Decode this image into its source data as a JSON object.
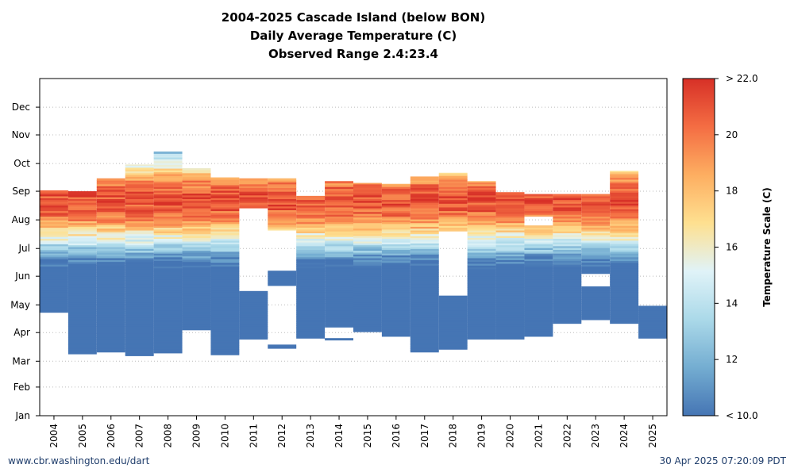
{
  "chart_data": {
    "type": "heatmap",
    "title": "2004-2025 Cascade Island (below BON)",
    "subtitle_lines": [
      "Daily Average Temperature (C)",
      "Observed Range 2.4:23.4"
    ],
    "x_categories": [
      "2004",
      "2005",
      "2006",
      "2007",
      "2008",
      "2009",
      "2010",
      "2011",
      "2012",
      "2013",
      "2014",
      "2015",
      "2016",
      "2017",
      "2018",
      "2019",
      "2020",
      "2021",
      "2022",
      "2023",
      "2024",
      "2025"
    ],
    "y_ticks": [
      "Jan",
      "Feb",
      "Mar",
      "Apr",
      "May",
      "Jun",
      "Jul",
      "Aug",
      "Sep",
      "Oct",
      "Nov",
      "Dec"
    ],
    "colorbar": {
      "label": "Temperature Scale (C)",
      "tick_labels": [
        "< 10.0",
        "12",
        "14",
        "16",
        "18",
        "20",
        "> 22.0"
      ],
      "tick_values": [
        10,
        12,
        14,
        16,
        18,
        20,
        22
      ],
      "range": [
        10,
        22
      ],
      "colors": [
        "#4575b4",
        "#74add1",
        "#abd9e9",
        "#e0f3f8",
        "#fee090",
        "#fdae61",
        "#f46d43",
        "#d73027"
      ]
    },
    "grid": "horizontal dotted",
    "coverage_note_days": "day-of-year ranges",
    "years": [
      {
        "year": "2004",
        "start": 112,
        "end": 244,
        "gaps": []
      },
      {
        "year": "2005",
        "start": 67,
        "end": 243,
        "gaps": []
      },
      {
        "year": "2006",
        "start": 69,
        "end": 257,
        "gaps": []
      },
      {
        "year": "2007",
        "start": 65,
        "end": 272,
        "gaps": []
      },
      {
        "year": "2008",
        "start": 68,
        "end": 286,
        "gaps": []
      },
      {
        "year": "2009",
        "start": 93,
        "end": 268,
        "gaps": []
      },
      {
        "year": "2010",
        "start": 66,
        "end": 258,
        "gaps": []
      },
      {
        "year": "2011",
        "start": 83,
        "end": 257,
        "gaps": [
          [
            135,
            180
          ],
          [
            181,
            224
          ]
        ]
      },
      {
        "year": "2012",
        "start": 73,
        "end": 257,
        "gaps": [
          [
            76,
            140
          ],
          [
            157,
            200
          ]
        ]
      },
      {
        "year": "2013",
        "start": 84,
        "end": 238,
        "gaps": []
      },
      {
        "year": "2014",
        "start": 82,
        "end": 254,
        "gaps": [
          [
            83,
            96
          ]
        ]
      },
      {
        "year": "2015",
        "start": 91,
        "end": 252,
        "gaps": []
      },
      {
        "year": "2016",
        "start": 86,
        "end": 251,
        "gaps": []
      },
      {
        "year": "2017",
        "start": 69,
        "end": 259,
        "gaps": []
      },
      {
        "year": "2018",
        "start": 72,
        "end": 263,
        "gaps": [
          [
            130,
            200
          ]
        ]
      },
      {
        "year": "2019",
        "start": 83,
        "end": 254,
        "gaps": []
      },
      {
        "year": "2020",
        "start": 83,
        "end": 242,
        "gaps": []
      },
      {
        "year": "2021",
        "start": 86,
        "end": 240,
        "gaps": [
          [
            205,
            215
          ]
        ]
      },
      {
        "year": "2022",
        "start": 100,
        "end": 240,
        "gaps": []
      },
      {
        "year": "2023",
        "start": 104,
        "end": 240,
        "gaps": [
          [
            140,
            153
          ]
        ]
      },
      {
        "year": "2024",
        "start": 100,
        "end": 265,
        "gaps": []
      },
      {
        "year": "2025",
        "start": 84,
        "end": 119,
        "gaps": []
      }
    ]
  },
  "footer": {
    "left": "www.cbr.washington.edu/dart",
    "right": "30 Apr 2025 07:20:09 PDT"
  }
}
